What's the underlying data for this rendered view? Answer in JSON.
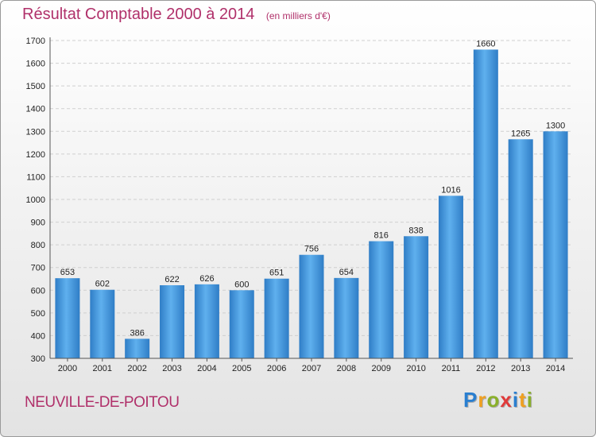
{
  "chart_data": {
    "type": "bar",
    "title": "Résultat Comptable 2000 à 2014",
    "subtitle": "(en milliers d'€)",
    "categories": [
      "2000",
      "2001",
      "2002",
      "2003",
      "2004",
      "2005",
      "2006",
      "2007",
      "2008",
      "2009",
      "2010",
      "2011",
      "2012",
      "2013",
      "2014"
    ],
    "values": [
      653,
      602,
      386,
      622,
      626,
      600,
      651,
      756,
      654,
      816,
      838,
      1016,
      1660,
      1265,
      1300
    ],
    "ylim": [
      300,
      1700
    ],
    "yticks": [
      300,
      400,
      500,
      600,
      700,
      800,
      900,
      1000,
      1100,
      1200,
      1300,
      1400,
      1500,
      1600,
      1700
    ],
    "grid": true,
    "bar_color": "#3b8fd6"
  },
  "footer": {
    "commune": "NEUVILLE-DE-POITOU",
    "logo_letters": [
      {
        "char": "P",
        "color": "#2a7fd0"
      },
      {
        "char": "r",
        "color": "#f0a020"
      },
      {
        "char": "o",
        "color": "#8ab02a"
      },
      {
        "char": "x",
        "color": "#e03a3a"
      },
      {
        "char": "i",
        "color": "#2a7fd0"
      },
      {
        "char": "t",
        "color": "#f0a020"
      },
      {
        "char": "i",
        "color": "#8ab02a"
      }
    ]
  }
}
